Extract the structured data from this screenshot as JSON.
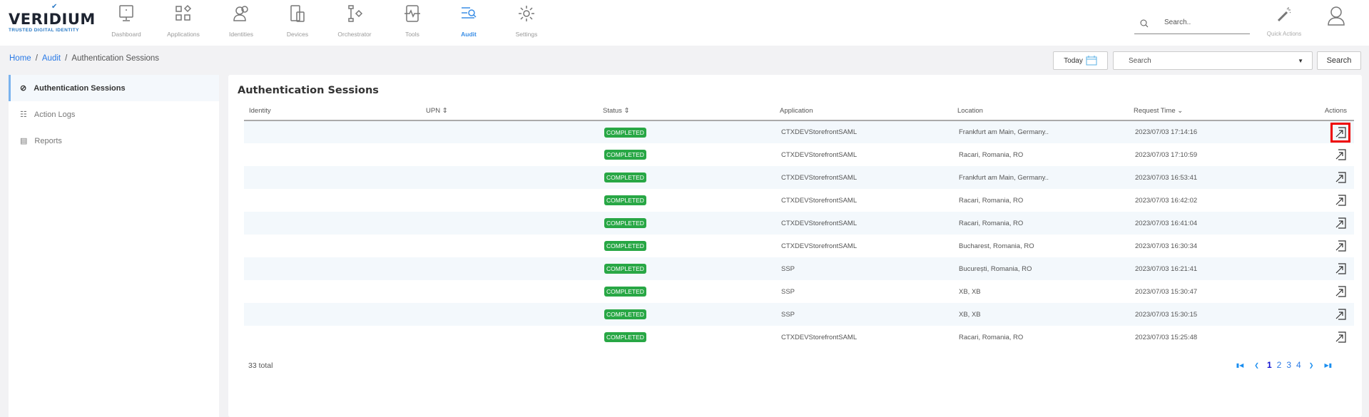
{
  "brand": {
    "name": "VERIDIUM",
    "tagline": "TRUSTED DIGITAL IDENTITY"
  },
  "nav": [
    {
      "label": "Dashboard",
      "icon": "monitor-icon"
    },
    {
      "label": "Applications",
      "icon": "apps-icon"
    },
    {
      "label": "Identities",
      "icon": "users-icon"
    },
    {
      "label": "Devices",
      "icon": "devices-icon"
    },
    {
      "label": "Orchestrator",
      "icon": "flow-icon"
    },
    {
      "label": "Tools",
      "icon": "pulse-icon"
    },
    {
      "label": "Audit",
      "icon": "audit-icon",
      "active": true
    },
    {
      "label": "Settings",
      "icon": "gear-icon"
    }
  ],
  "global_search": {
    "placeholder": "Search.."
  },
  "quick_actions": "Quick Actions",
  "breadcrumb": {
    "home": "Home",
    "audit": "Audit",
    "current": "Authentication Sessions"
  },
  "toolbar": {
    "today": "Today",
    "dropdown_placeholder": "Search",
    "search": "Search"
  },
  "sidebar": {
    "items": [
      {
        "label": "Authentication Sessions",
        "active": true
      },
      {
        "label": "Action Logs"
      },
      {
        "label": "Reports"
      }
    ]
  },
  "main": {
    "title": "Authentication Sessions",
    "columns": {
      "identity": "Identity",
      "upn": "UPN",
      "status": "Status",
      "application": "Application",
      "location": "Location",
      "request_time": "Request Time",
      "actions": "Actions"
    },
    "rows": [
      {
        "status": "COMPLETED",
        "application": "CTXDEVStorefrontSAML",
        "location": "Frankfurt am Main, Germany..",
        "time": "2023/07/03 17:14:16"
      },
      {
        "status": "COMPLETED",
        "application": "CTXDEVStorefrontSAML",
        "location": "Racari, Romania, RO",
        "time": "2023/07/03 17:10:59"
      },
      {
        "status": "COMPLETED",
        "application": "CTXDEVStorefrontSAML",
        "location": "Frankfurt am Main, Germany..",
        "time": "2023/07/03 16:53:41"
      },
      {
        "status": "COMPLETED",
        "application": "CTXDEVStorefrontSAML",
        "location": "Racari, Romania, RO",
        "time": "2023/07/03 16:42:02"
      },
      {
        "status": "COMPLETED",
        "application": "CTXDEVStorefrontSAML",
        "location": "Racari, Romania, RO",
        "time": "2023/07/03 16:41:04"
      },
      {
        "status": "COMPLETED",
        "application": "CTXDEVStorefrontSAML",
        "location": "Bucharest, Romania, RO",
        "time": "2023/07/03 16:30:34"
      },
      {
        "status": "COMPLETED",
        "application": "SSP",
        "location": "București, Romania, RO",
        "time": "2023/07/03 16:21:41"
      },
      {
        "status": "COMPLETED",
        "application": "SSP",
        "location": "XB, XB",
        "time": "2023/07/03 15:30:47"
      },
      {
        "status": "COMPLETED",
        "application": "SSP",
        "location": "XB, XB",
        "time": "2023/07/03 15:30:15"
      },
      {
        "status": "COMPLETED",
        "application": "CTXDEVStorefrontSAML",
        "location": "Racari, Romania, RO",
        "time": "2023/07/03 15:25:48"
      }
    ],
    "total": "33 total",
    "pages": [
      "1",
      "2",
      "3",
      "4"
    ],
    "current_page": "1"
  },
  "colors": {
    "accent": "#3a8ee6",
    "status_completed": "#28a745",
    "highlight": "#e00000"
  }
}
